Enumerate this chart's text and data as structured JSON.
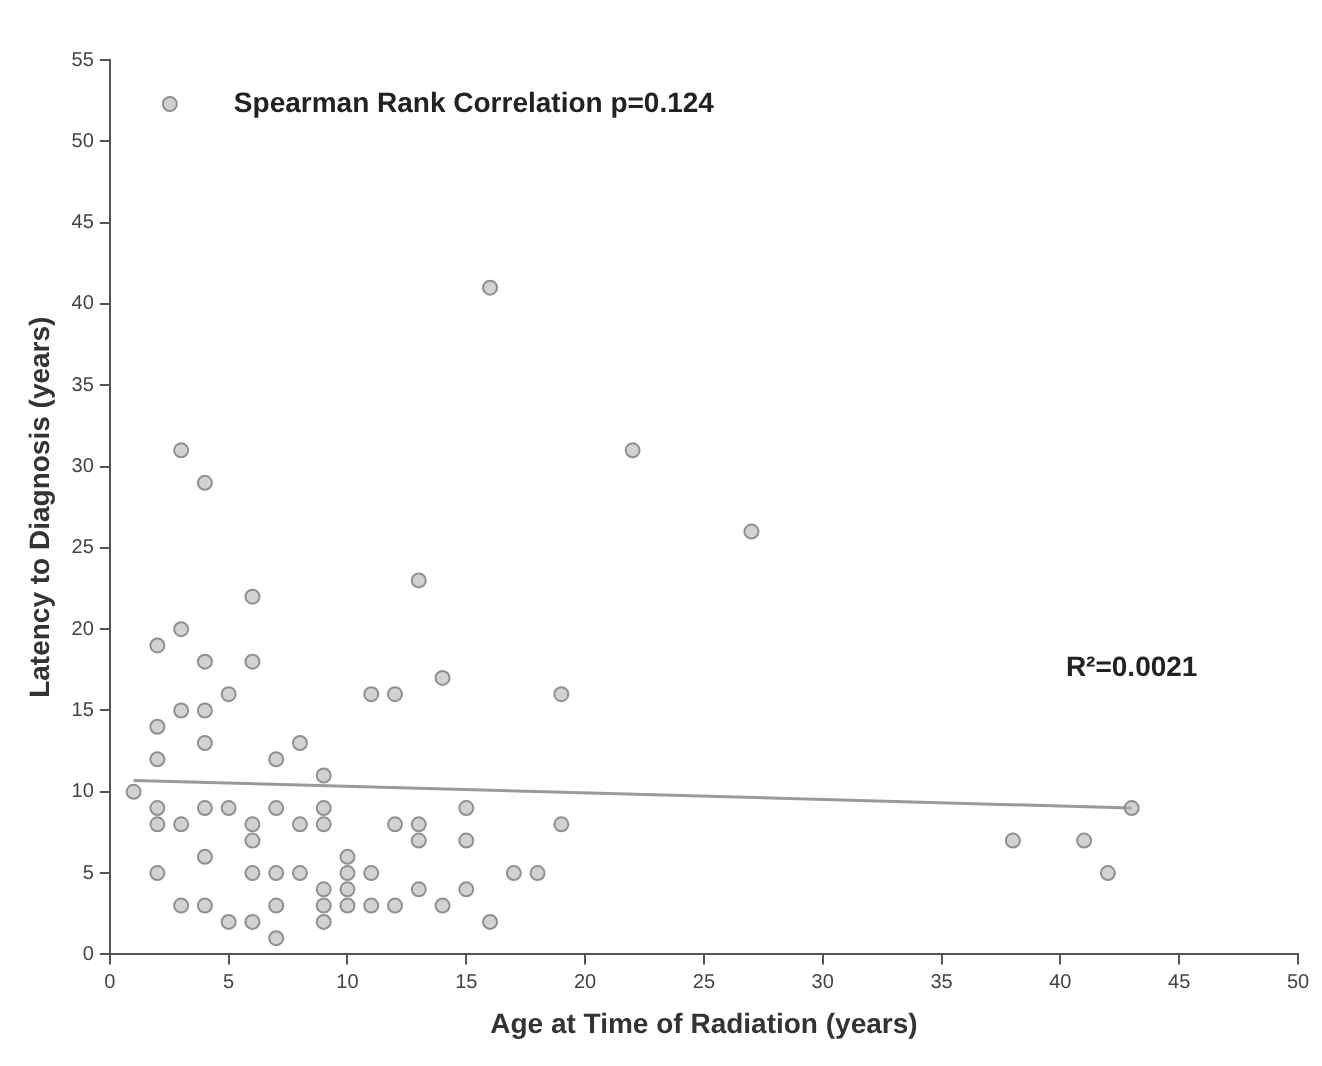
{
  "chart_data": {
    "type": "scatter",
    "xlabel": "Age at Time of Radiation (years)",
    "ylabel": "Latency to Diagnosis (years)",
    "xlim": [
      0,
      50
    ],
    "xticks": [
      0,
      5,
      10,
      15,
      20,
      25,
      30,
      35,
      40,
      45,
      50
    ],
    "ylim": [
      0,
      55
    ],
    "yticks": [
      0,
      5,
      10,
      15,
      20,
      25,
      30,
      35,
      40,
      45,
      50,
      55
    ],
    "grid": false,
    "legend": "top left",
    "marker": "circle",
    "annotations": [
      "R²=0.0021"
    ],
    "series": [
      {
        "name": "Spearman Rank Correlation p=0.124",
        "color": "#b4b4b4",
        "x": [
          1,
          2,
          2,
          2,
          2,
          2,
          2,
          3,
          3,
          3,
          3,
          3,
          4,
          4,
          4,
          4,
          4,
          4,
          4,
          5,
          5,
          5,
          6,
          6,
          6,
          6,
          6,
          6,
          7,
          7,
          7,
          7,
          7,
          8,
          8,
          8,
          9,
          9,
          9,
          9,
          9,
          9,
          10,
          10,
          10,
          10,
          11,
          11,
          11,
          12,
          12,
          12,
          13,
          13,
          13,
          13,
          14,
          14,
          15,
          15,
          15,
          16,
          16,
          17,
          18,
          19,
          19,
          22,
          27,
          38,
          41,
          42,
          43
        ],
        "values": [
          10,
          19,
          14,
          12,
          9,
          8,
          5,
          31,
          20,
          15,
          8,
          3,
          29,
          18,
          15,
          13,
          9,
          6,
          3,
          16,
          9,
          2,
          22,
          18,
          8,
          7,
          5,
          2,
          12,
          9,
          5,
          3,
          1,
          13,
          8,
          5,
          11,
          9,
          8,
          4,
          3,
          2,
          6,
          5,
          4,
          3,
          16,
          5,
          3,
          16,
          8,
          3,
          23,
          8,
          7,
          4,
          17,
          3,
          9,
          7,
          4,
          41,
          2,
          5,
          5,
          16,
          8,
          31,
          26,
          7,
          7,
          5,
          9
        ]
      },
      {
        "type": "line",
        "color": "#999999",
        "marker": "none",
        "x": [
          1,
          43
        ],
        "values": [
          10.7,
          9.0
        ]
      }
    ]
  }
}
